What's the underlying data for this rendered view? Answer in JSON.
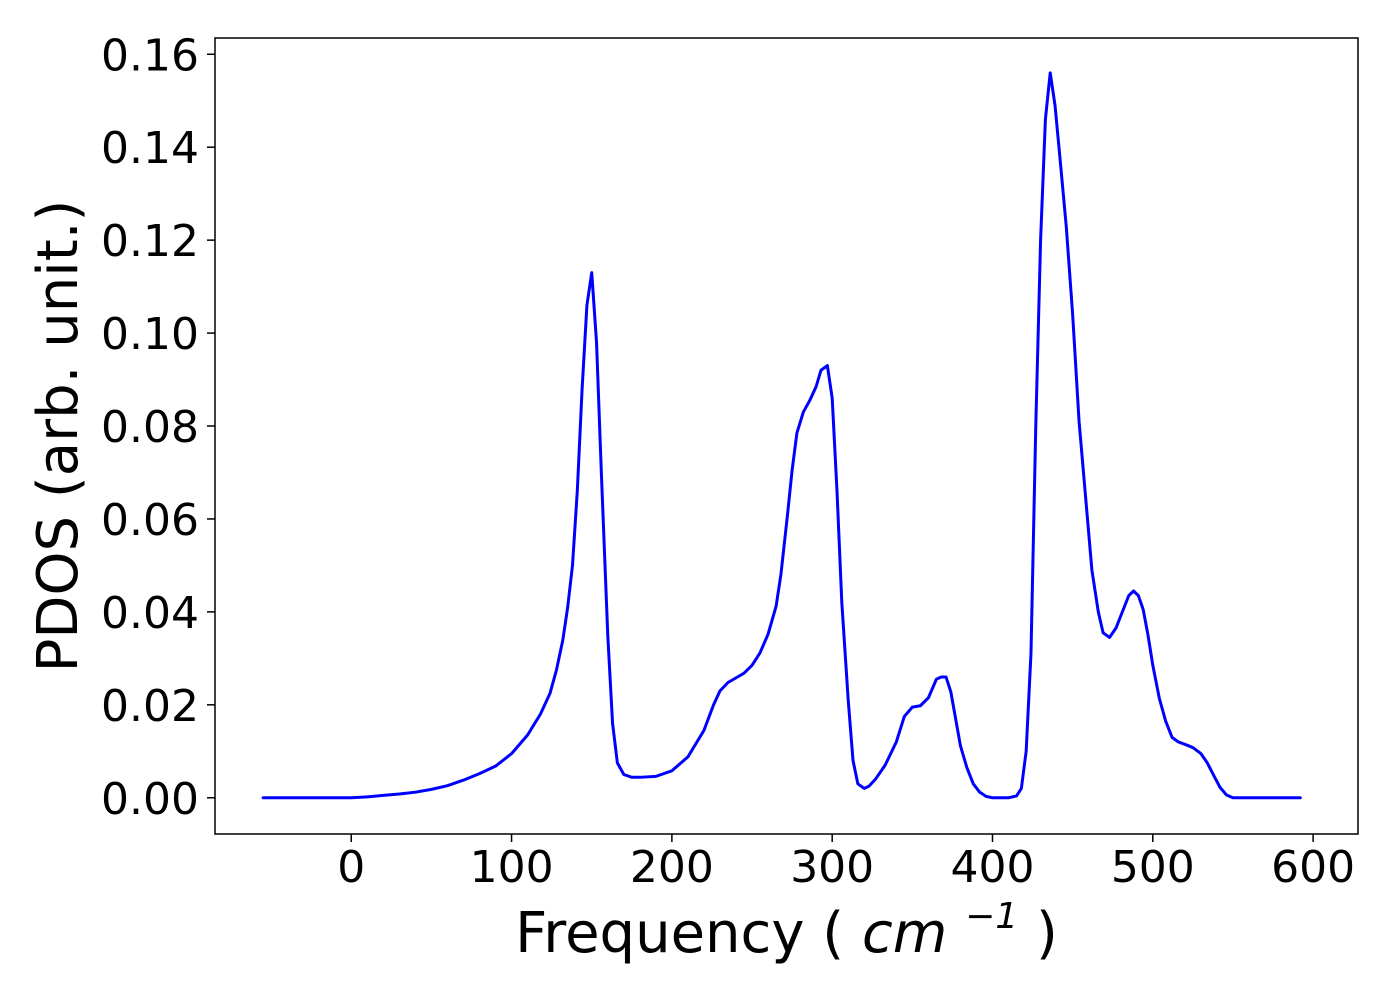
{
  "chart_data": {
    "type": "line",
    "title": "",
    "xlabel": "Frequency",
    "xlabel_unit_base": "cm",
    "xlabel_unit_exponent": "−1",
    "ylabel": "PDOS (arb. unit.)",
    "xlim": [
      -85,
      628
    ],
    "ylim": [
      -0.0078,
      0.1635
    ],
    "xticks": [
      0,
      100,
      200,
      300,
      400,
      500,
      600
    ],
    "yticks": [
      0.0,
      0.02,
      0.04,
      0.06,
      0.08,
      0.1,
      0.12,
      0.14,
      0.16
    ],
    "grid": false,
    "legend": "none",
    "line_color": "#0000ff",
    "series": [
      {
        "x": [
          -55,
          0,
          10,
          20,
          30,
          40,
          50,
          60,
          70,
          80,
          90,
          100,
          110,
          118,
          124,
          128,
          132,
          135,
          138,
          141,
          144,
          147,
          150,
          153,
          156,
          160,
          163,
          166,
          170,
          175,
          180,
          190,
          200,
          210,
          220,
          226,
          230,
          235,
          240,
          245,
          250,
          255,
          260,
          265,
          268,
          272,
          275,
          278,
          282,
          286,
          290,
          293,
          297,
          300,
          303,
          306,
          310,
          313,
          316,
          320,
          323,
          327,
          333,
          340,
          345,
          350,
          355,
          360,
          365,
          368,
          371,
          374,
          377,
          380,
          384,
          388,
          392,
          396,
          400,
          405,
          410,
          415,
          418,
          421,
          424,
          427,
          430,
          433,
          436,
          439,
          442,
          446,
          450,
          454,
          458,
          462,
          466,
          469,
          473,
          477,
          481,
          485,
          488,
          491,
          494,
          497,
          500,
          504,
          508,
          512,
          516,
          520,
          525,
          530,
          534,
          538,
          542,
          546,
          550,
          560,
          570,
          580,
          592
        ],
        "y": [
          0.0,
          0.0,
          0.0002,
          0.0005,
          0.0008,
          0.0012,
          0.0018,
          0.0026,
          0.0038,
          0.0052,
          0.0068,
          0.0095,
          0.0135,
          0.018,
          0.0225,
          0.0275,
          0.034,
          0.041,
          0.05,
          0.066,
          0.088,
          0.106,
          0.113,
          0.098,
          0.07,
          0.035,
          0.016,
          0.0075,
          0.005,
          0.0044,
          0.0044,
          0.0046,
          0.0058,
          0.0088,
          0.0145,
          0.02,
          0.023,
          0.0248,
          0.0258,
          0.0268,
          0.0285,
          0.0312,
          0.0352,
          0.0412,
          0.048,
          0.0605,
          0.0705,
          0.0785,
          0.083,
          0.0855,
          0.0885,
          0.092,
          0.093,
          0.086,
          0.066,
          0.042,
          0.021,
          0.008,
          0.003,
          0.002,
          0.0025,
          0.004,
          0.007,
          0.012,
          0.0175,
          0.0195,
          0.0198,
          0.0215,
          0.0255,
          0.026,
          0.026,
          0.0228,
          0.017,
          0.0112,
          0.0065,
          0.003,
          0.0012,
          0.0003,
          0.0,
          0.0,
          0.0,
          0.0004,
          0.002,
          0.01,
          0.031,
          0.08,
          0.12,
          0.146,
          0.156,
          0.149,
          0.138,
          0.123,
          0.104,
          0.081,
          0.065,
          0.049,
          0.04,
          0.0355,
          0.0345,
          0.0365,
          0.04,
          0.0435,
          0.0445,
          0.0435,
          0.0405,
          0.035,
          0.0285,
          0.0215,
          0.0165,
          0.013,
          0.012,
          0.0115,
          0.0108,
          0.0095,
          0.0075,
          0.0048,
          0.0022,
          0.0006,
          0.0,
          0.0,
          0.0,
          0.0,
          0.0
        ]
      }
    ]
  }
}
